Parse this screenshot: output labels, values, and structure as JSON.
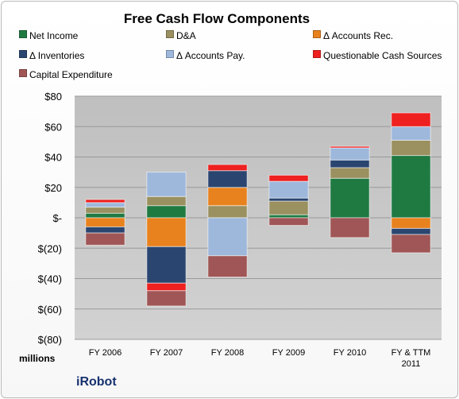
{
  "chart_data": {
    "type": "bar",
    "stacked": true,
    "title": "Free Cash Flow Components",
    "units_label": "millions",
    "brand": "iRobot",
    "categories": [
      "FY 2006",
      "FY 2007",
      "FY 2008",
      "FY 2009",
      "FY 2010",
      "FY & TTM 2011"
    ],
    "category_lines": [
      [
        "FY 2006"
      ],
      [
        "FY 2007"
      ],
      [
        "FY 2008"
      ],
      [
        "FY 2009"
      ],
      [
        "FY 2010"
      ],
      [
        "FY & TTM",
        "2011"
      ]
    ],
    "ylim": [
      -80,
      80
    ],
    "y_ticks": [
      80,
      60,
      40,
      20,
      0,
      -20,
      -40,
      -60,
      -80
    ],
    "y_tick_labels": [
      "$80",
      "$60",
      "$40",
      "$20",
      "$-",
      "$(20)",
      "$(40)",
      "$(60)",
      "$(80)"
    ],
    "grid": true,
    "legend_position": "top",
    "series": [
      {
        "name": "Net Income",
        "color": "#1f7a42",
        "values": [
          3,
          8,
          0,
          2,
          26,
          41
        ]
      },
      {
        "name": "D&A",
        "color": "#9a9060",
        "values": [
          4,
          6,
          8,
          9,
          7,
          10
        ]
      },
      {
        "name": "Δ Accounts Rec.",
        "color": "#e8821e",
        "values": [
          -6,
          -19,
          12,
          0,
          0,
          -7
        ]
      },
      {
        "name": "Δ Inventories",
        "color": "#2a4670",
        "values": [
          -4,
          -24,
          11,
          2,
          5,
          -4
        ]
      },
      {
        "name": "Δ Accounts Pay.",
        "color": "#9eb8dc",
        "values": [
          3,
          16,
          -25,
          11,
          8,
          9
        ]
      },
      {
        "name": "Questionable Cash Sources",
        "color": "#ee2020",
        "values": [
          2,
          -5,
          4,
          4,
          1,
          9
        ]
      },
      {
        "name": "Capital Expenditure",
        "color": "#a05656",
        "values": [
          -8,
          -10,
          -14,
          -5,
          -13,
          -12
        ]
      }
    ]
  }
}
